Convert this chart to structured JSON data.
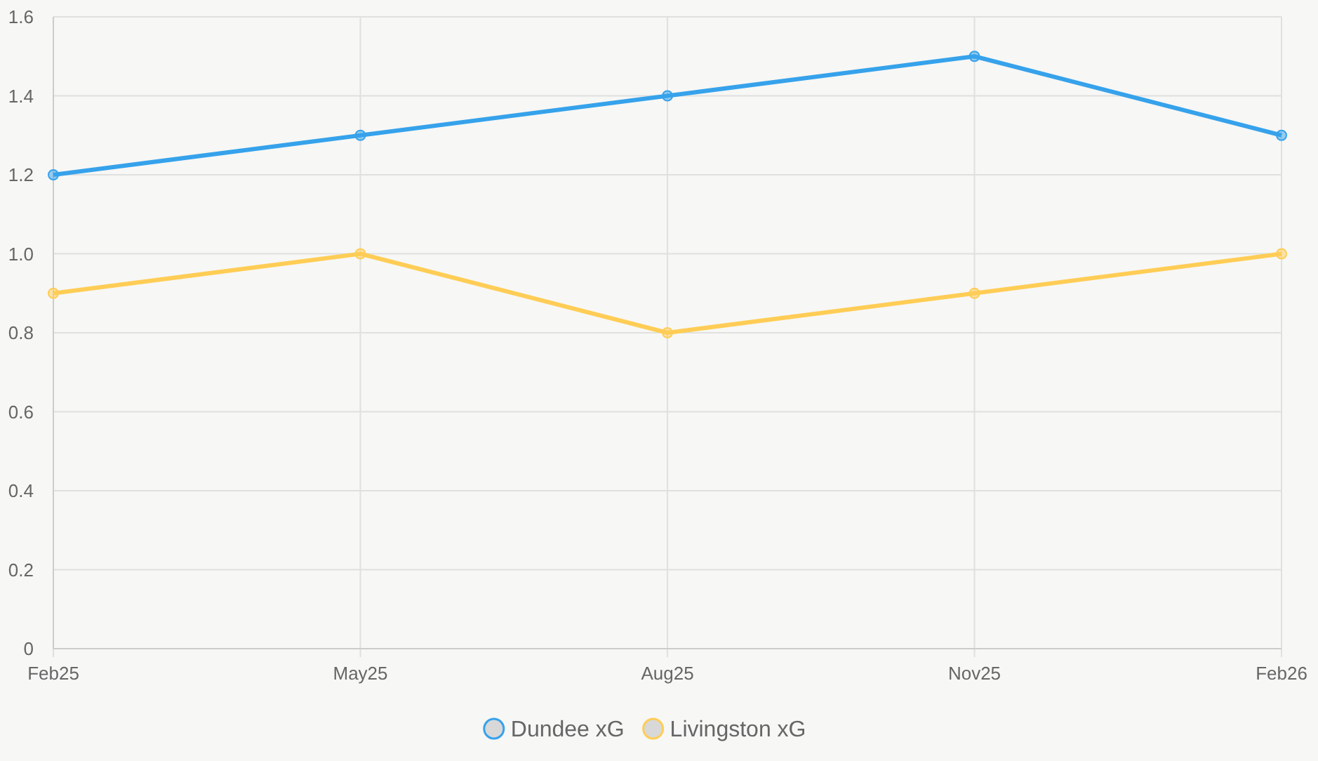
{
  "chart_data": {
    "type": "line",
    "categories": [
      "Feb25",
      "May25",
      "Aug25",
      "Nov25",
      "Feb26"
    ],
    "series": [
      {
        "name": "Dundee xG",
        "color": "#36a2eb",
        "values": [
          1.2,
          1.3,
          1.4,
          1.5,
          1.3
        ]
      },
      {
        "name": "Livingston xG",
        "color": "#ffcd56",
        "values": [
          0.9,
          1.0,
          0.8,
          0.9,
          1.0
        ]
      }
    ],
    "ylim": [
      0,
      1.6
    ],
    "yticks": [
      0,
      0.2,
      0.4,
      0.6,
      0.8,
      {
        "value": 1,
        "label": "1.0"
      },
      1.2,
      1.4,
      1.6
    ],
    "grid": true,
    "legend": "bottom",
    "marker": "circle",
    "line_style": "solid"
  }
}
